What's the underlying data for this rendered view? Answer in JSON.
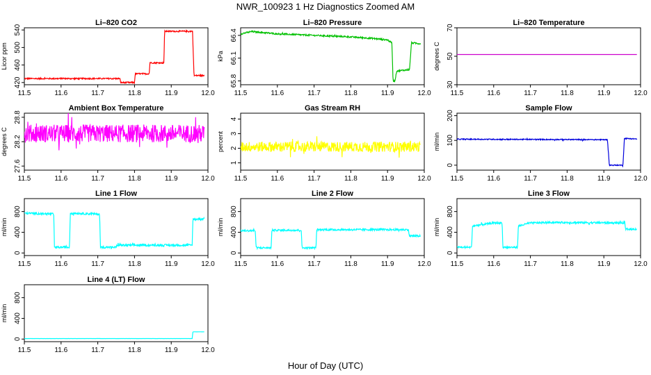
{
  "figure": {
    "title": "NWR_100923  1 Hz Diagnostics Zoomed AM",
    "xlabel": "Hour of Day (UTC)"
  },
  "chart_data": [
    {
      "type": "line",
      "title": "Li–820 CO2",
      "ylabel": "Licor ppm",
      "xlim": [
        11.5,
        12.0
      ],
      "ylim": [
        415,
        545
      ],
      "xticks": [
        "11.5",
        "11.6",
        "11.7",
        "11.8",
        "11.9",
        "12.0"
      ],
      "yticks": [
        "420",
        "460",
        "500",
        "540"
      ],
      "ytick_values": [
        420,
        460,
        500,
        540
      ],
      "color": "#ff0000",
      "noise": 1.5,
      "x": [
        11.5,
        11.76,
        11.762,
        11.8,
        11.802,
        11.84,
        11.842,
        11.88,
        11.882,
        11.958,
        11.962,
        11.99
      ],
      "y": [
        429,
        429,
        420,
        420,
        440,
        440,
        465,
        465,
        537,
        537,
        436,
        436
      ]
    },
    {
      "type": "line",
      "title": "Li–820 Pressure",
      "ylabel": "kPa",
      "xlim": [
        11.5,
        12.0
      ],
      "ylim": [
        65.75,
        66.5
      ],
      "xticks": [
        "11.5",
        "11.6",
        "11.7",
        "11.8",
        "11.9",
        "12.0"
      ],
      "yticks": [
        "65.8",
        "66.1",
        "66.4"
      ],
      "ytick_values": [
        65.8,
        66.1,
        66.4
      ],
      "color": "#00c000",
      "noise": 0.01,
      "x": [
        11.5,
        11.53,
        11.6,
        11.7,
        11.8,
        11.86,
        11.9,
        11.912,
        11.915,
        11.92,
        11.925,
        11.96,
        11.965,
        11.97,
        11.99
      ],
      "y": [
        66.42,
        66.45,
        66.42,
        66.4,
        66.38,
        66.36,
        66.34,
        66.3,
        65.8,
        65.8,
        65.93,
        65.95,
        66.3,
        66.3,
        66.29
      ]
    },
    {
      "type": "line",
      "title": "Li–820 Temperature",
      "ylabel": "degrees C",
      "xlim": [
        11.5,
        12.0
      ],
      "ylim": [
        30,
        70
      ],
      "xticks": [
        "11.5",
        "11.6",
        "11.7",
        "11.8",
        "11.9",
        "12.0"
      ],
      "yticks": [
        "30",
        "50",
        "70"
      ],
      "ytick_values": [
        30,
        50,
        70
      ],
      "color": "#cc00cc",
      "noise": 0,
      "x": [
        11.5,
        11.99
      ],
      "y": [
        51.2,
        51.2
      ]
    },
    {
      "type": "line",
      "title": "Ambient Box Temperature",
      "ylabel": "degrees C",
      "xlim": [
        11.5,
        12.0
      ],
      "ylim": [
        27.5,
        28.9
      ],
      "xticks": [
        "11.5",
        "11.6",
        "11.7",
        "11.8",
        "11.9",
        "12.0"
      ],
      "yticks": [
        "27.6",
        "28.2",
        "28.8"
      ],
      "ytick_values": [
        27.6,
        28.2,
        28.8
      ],
      "color": "#ff00ff",
      "noise": 0.22,
      "x": [
        11.5,
        11.99
      ],
      "y": [
        28.4,
        28.4
      ]
    },
    {
      "type": "line",
      "title": "Gas Stream RH",
      "ylabel": "percent",
      "xlim": [
        11.5,
        12.0
      ],
      "ylim": [
        0.5,
        4.4
      ],
      "xticks": [
        "11.5",
        "11.6",
        "11.7",
        "11.8",
        "11.9",
        "12.0"
      ],
      "yticks": [
        "1",
        "2",
        "3",
        "4"
      ],
      "ytick_values": [
        1,
        2,
        3,
        4
      ],
      "color": "#ffff00",
      "noise": 0.35,
      "x": [
        11.5,
        11.99
      ],
      "y": [
        2.1,
        2.1
      ]
    },
    {
      "type": "line",
      "title": "Sample Flow",
      "ylabel": "ml/min",
      "xlim": [
        11.5,
        12.0
      ],
      "ylim": [
        -20,
        210
      ],
      "xticks": [
        "11.5",
        "11.6",
        "11.7",
        "11.8",
        "11.9",
        "12.0"
      ],
      "yticks": [
        "0",
        "100",
        "200"
      ],
      "ytick_values": [
        0,
        100,
        200
      ],
      "color": "#0000dd",
      "noise": 2,
      "x": [
        11.5,
        11.91,
        11.915,
        11.952,
        11.956,
        11.99
      ],
      "y": [
        105,
        103,
        0,
        0,
        108,
        106
      ]
    },
    {
      "type": "line",
      "title": "Line 1 Flow",
      "ylabel": "ml/min",
      "xlim": [
        11.5,
        12.0
      ],
      "ylim": [
        -50,
        1050
      ],
      "xticks": [
        "11.5",
        "11.6",
        "11.7",
        "11.8",
        "11.9",
        "12.0"
      ],
      "yticks": [
        "0",
        "400",
        "800"
      ],
      "ytick_values": [
        0,
        400,
        800
      ],
      "color": "#00ffff",
      "noise": 20,
      "x": [
        11.5,
        11.58,
        11.582,
        11.623,
        11.625,
        11.705,
        11.707,
        11.75,
        11.752,
        11.957,
        11.959,
        11.99
      ],
      "y": [
        770,
        750,
        110,
        110,
        770,
        750,
        110,
        110,
        150,
        150,
        650,
        660
      ]
    },
    {
      "type": "line",
      "title": "Line 2 Flow",
      "ylabel": "ml/min",
      "xlim": [
        11.5,
        12.0
      ],
      "ylim": [
        -50,
        1050
      ],
      "xticks": [
        "11.5",
        "11.6",
        "11.7",
        "11.8",
        "11.9",
        "12.0"
      ],
      "yticks": [
        "0",
        "400",
        "800"
      ],
      "ytick_values": [
        0,
        400,
        800
      ],
      "color": "#00ffff",
      "noise": 18,
      "x": [
        11.5,
        11.54,
        11.542,
        11.583,
        11.585,
        11.665,
        11.667,
        11.705,
        11.707,
        11.957,
        11.959,
        11.99
      ],
      "y": [
        430,
        430,
        100,
        100,
        440,
        440,
        100,
        100,
        450,
        450,
        330,
        330
      ]
    },
    {
      "type": "line",
      "title": "Line 3 Flow",
      "ylabel": "ml/min",
      "xlim": [
        11.5,
        12.0
      ],
      "ylim": [
        -50,
        1050
      ],
      "xticks": [
        "11.5",
        "11.6",
        "11.7",
        "11.8",
        "11.9",
        "12.0"
      ],
      "yticks": [
        "0",
        "400",
        "800"
      ],
      "ytick_values": [
        0,
        400,
        800
      ],
      "color": "#00ffff",
      "noise": 18,
      "x": [
        11.5,
        11.54,
        11.542,
        11.58,
        11.6,
        11.623,
        11.625,
        11.665,
        11.667,
        11.7,
        11.76,
        11.957,
        11.959,
        11.99
      ],
      "y": [
        110,
        110,
        520,
        560,
        580,
        580,
        110,
        110,
        520,
        580,
        590,
        580,
        460,
        460
      ]
    },
    {
      "type": "line",
      "title": "Line 4 (LT) Flow",
      "ylabel": "ml/min",
      "xlim": [
        11.5,
        12.0
      ],
      "ylim": [
        -50,
        1050
      ],
      "xticks": [
        "11.5",
        "11.6",
        "11.7",
        "11.8",
        "11.9",
        "12.0"
      ],
      "yticks": [
        "0",
        "400",
        "800"
      ],
      "ytick_values": [
        0,
        400,
        800
      ],
      "color": "#00ffff",
      "noise": 1,
      "x": [
        11.5,
        11.957,
        11.959,
        11.99
      ],
      "y": [
        10,
        10,
        140,
        140
      ]
    }
  ]
}
